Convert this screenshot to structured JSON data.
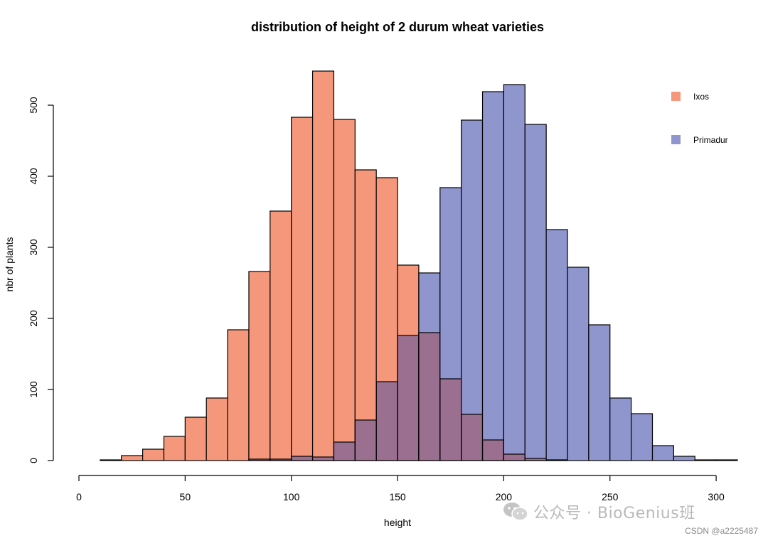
{
  "chart_data": {
    "type": "histogram",
    "title": "distribution of height of 2 durum wheat varieties",
    "xlabel": "height",
    "ylabel": "nbr of plants",
    "xlim": [
      0,
      310
    ],
    "ylim": [
      0,
      550
    ],
    "x_ticks": [
      0,
      50,
      100,
      150,
      200,
      250,
      300
    ],
    "y_ticks": [
      0,
      100,
      200,
      300,
      400,
      500
    ],
    "bin_width": 10,
    "bin_starts": [
      10,
      20,
      30,
      40,
      50,
      60,
      70,
      80,
      90,
      100,
      110,
      120,
      130,
      140,
      150,
      160,
      170,
      180,
      190,
      200,
      210,
      220,
      230,
      240,
      250,
      260,
      270,
      280,
      290,
      300
    ],
    "legend_position": "top-right",
    "series": [
      {
        "name": "Ixos",
        "color": "#F4977A",
        "values": [
          1,
          7,
          16,
          34,
          61,
          88,
          184,
          266,
          351,
          483,
          548,
          480,
          409,
          398,
          275,
          180,
          115,
          65,
          29,
          9,
          3,
          1,
          0,
          0,
          0,
          0,
          0,
          0,
          0,
          0
        ]
      },
      {
        "name": "Primadur",
        "color": "#8F95CD",
        "values": [
          0,
          0,
          0,
          0,
          0,
          0,
          0,
          2,
          2,
          6,
          5,
          26,
          57,
          111,
          176,
          264,
          384,
          479,
          519,
          529,
          473,
          325,
          272,
          191,
          88,
          66,
          21,
          6,
          1,
          1
        ]
      }
    ],
    "overlap_color": "#9A6F8F"
  },
  "watermark": {
    "text": "公众号 · BioGenius班",
    "icon": "wechat-icon"
  },
  "credit": "CSDN @a2225487"
}
